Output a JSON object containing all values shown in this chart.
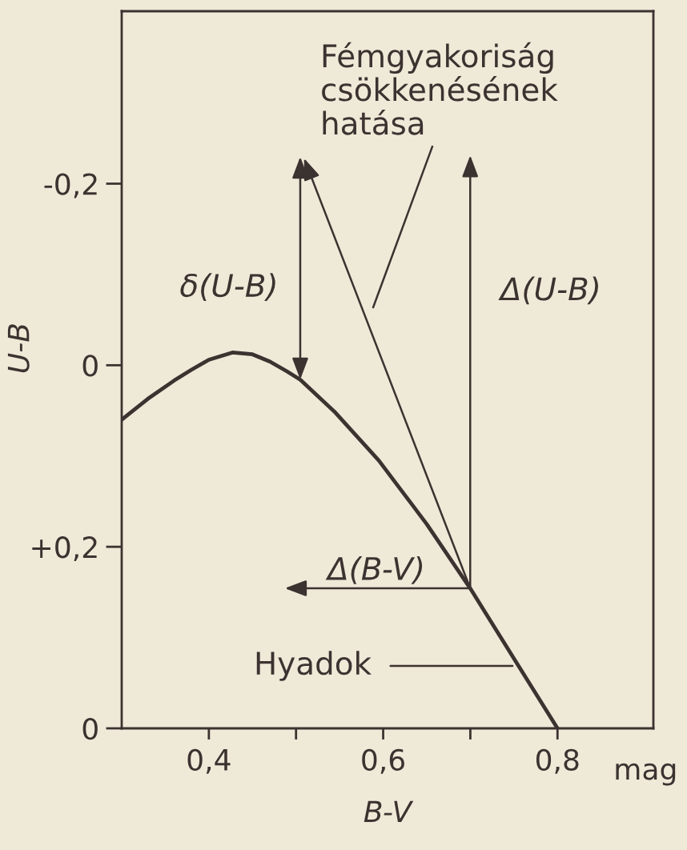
{
  "chart_data": {
    "type": "line",
    "xlabel": "B-V",
    "ylabel": "U-B",
    "xlim": [
      0.3,
      0.91
    ],
    "ylim": [
      0.4,
      -0.39
    ],
    "xticks": [
      {
        "value": 0.4,
        "label": "0,4"
      },
      {
        "value": 0.5,
        "label": null
      },
      {
        "value": 0.6,
        "label": "0,6"
      },
      {
        "value": 0.7,
        "label": null
      },
      {
        "value": 0.8,
        "label": "0,8"
      }
    ],
    "yticks": [
      {
        "value": -0.2,
        "label": "-0,2"
      },
      0,
      {
        "value": 0.2,
        "label": "+0,2"
      },
      {
        "value": 0.4,
        "label": "0"
      }
    ],
    "series": [
      {
        "color": "#3b3330",
        "x": [
          0.3,
          0.33,
          0.36,
          0.38,
          0.4,
          0.427,
          0.45,
          0.47,
          0.49,
          0.505,
          0.545,
          0.595,
          0.65,
          0.7,
          0.75,
          0.8
        ],
        "values": [
          0.06,
          0.037,
          0.017,
          0.005,
          -0.006,
          -0.014,
          -0.012,
          -0.004,
          0.007,
          0.016,
          0.052,
          0.105,
          0.175,
          0.246,
          0.323,
          0.4
        ]
      }
    ],
    "annotations": [
      "Fémgyakoriság\ncsökkenésének\nhatása",
      "δ(U-B)",
      "Δ(U-B)",
      "Δ(B-V)",
      "Hyadok",
      "mag"
    ]
  }
}
